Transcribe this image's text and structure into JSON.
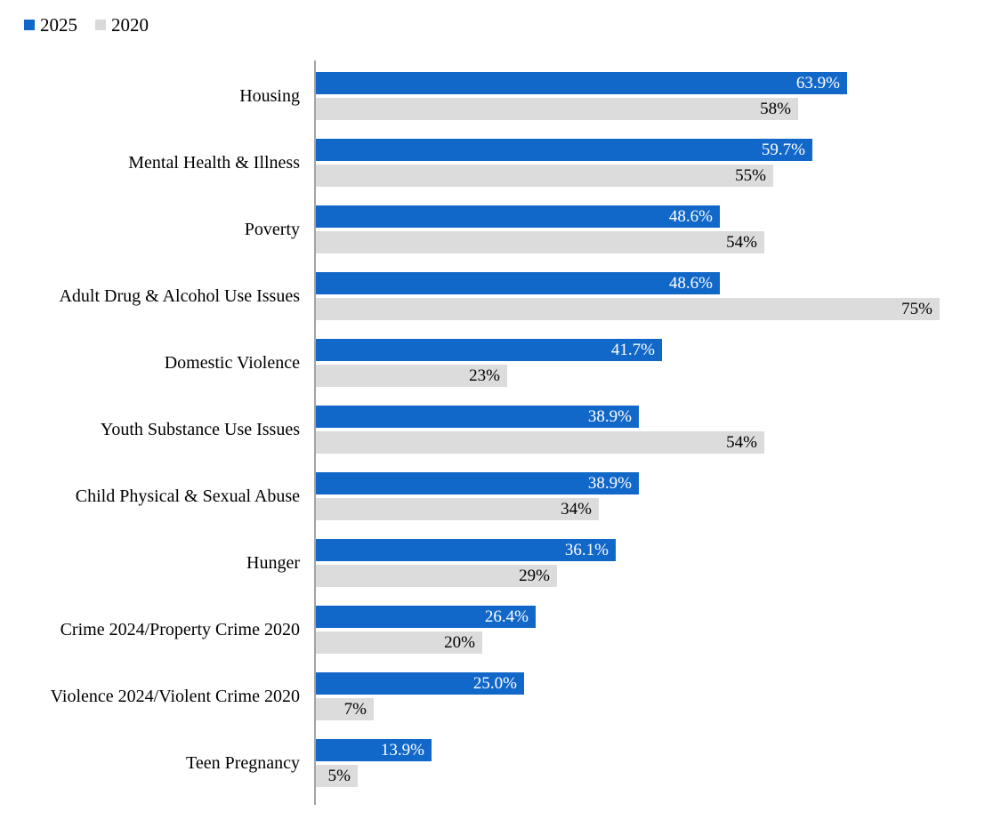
{
  "legend": {
    "items": [
      {
        "label": "2025",
        "color": "#1268c8"
      },
      {
        "label": "2020",
        "color": "#d9d9d9"
      }
    ]
  },
  "chart_data": {
    "type": "bar",
    "orientation": "horizontal",
    "title": "",
    "xlabel": "",
    "ylabel": "",
    "xlim": [
      0,
      82.6
    ],
    "grid": false,
    "legend_position": "top-left",
    "categories": [
      "Housing",
      "Mental Health & Illness",
      "Poverty",
      "Adult Drug & Alcohol Use Issues",
      "Domestic Violence",
      "Youth Substance Use Issues",
      "Child Physical & Sexual Abuse",
      "Hunger",
      "Crime 2024/Property Crime 2020",
      "Violence 2024/Violent Crime 2020",
      "Teen Pregnancy"
    ],
    "series": [
      {
        "name": "2025",
        "color": "#1268c8",
        "label_color": "#ffffff",
        "values": [
          63.9,
          59.7,
          48.6,
          48.6,
          41.7,
          38.9,
          38.9,
          36.1,
          26.4,
          25.0,
          13.9
        ],
        "labels": [
          "63.9%",
          "59.7%",
          "48.6%",
          "48.6%",
          "41.7%",
          "38.9%",
          "38.9%",
          "36.1%",
          "26.4%",
          "25.0%",
          "13.9%"
        ]
      },
      {
        "name": "2020",
        "color": "#dcdcdc",
        "label_color": "#000000",
        "values": [
          58,
          55,
          54,
          75,
          23,
          54,
          34,
          29,
          20,
          7,
          5
        ],
        "labels": [
          "58%",
          "55%",
          "54%",
          "75%",
          "23%",
          "54%",
          "34%",
          "29%",
          "20%",
          "7%",
          "5%"
        ]
      }
    ],
    "axis_line_color": "#a3a3a3"
  }
}
